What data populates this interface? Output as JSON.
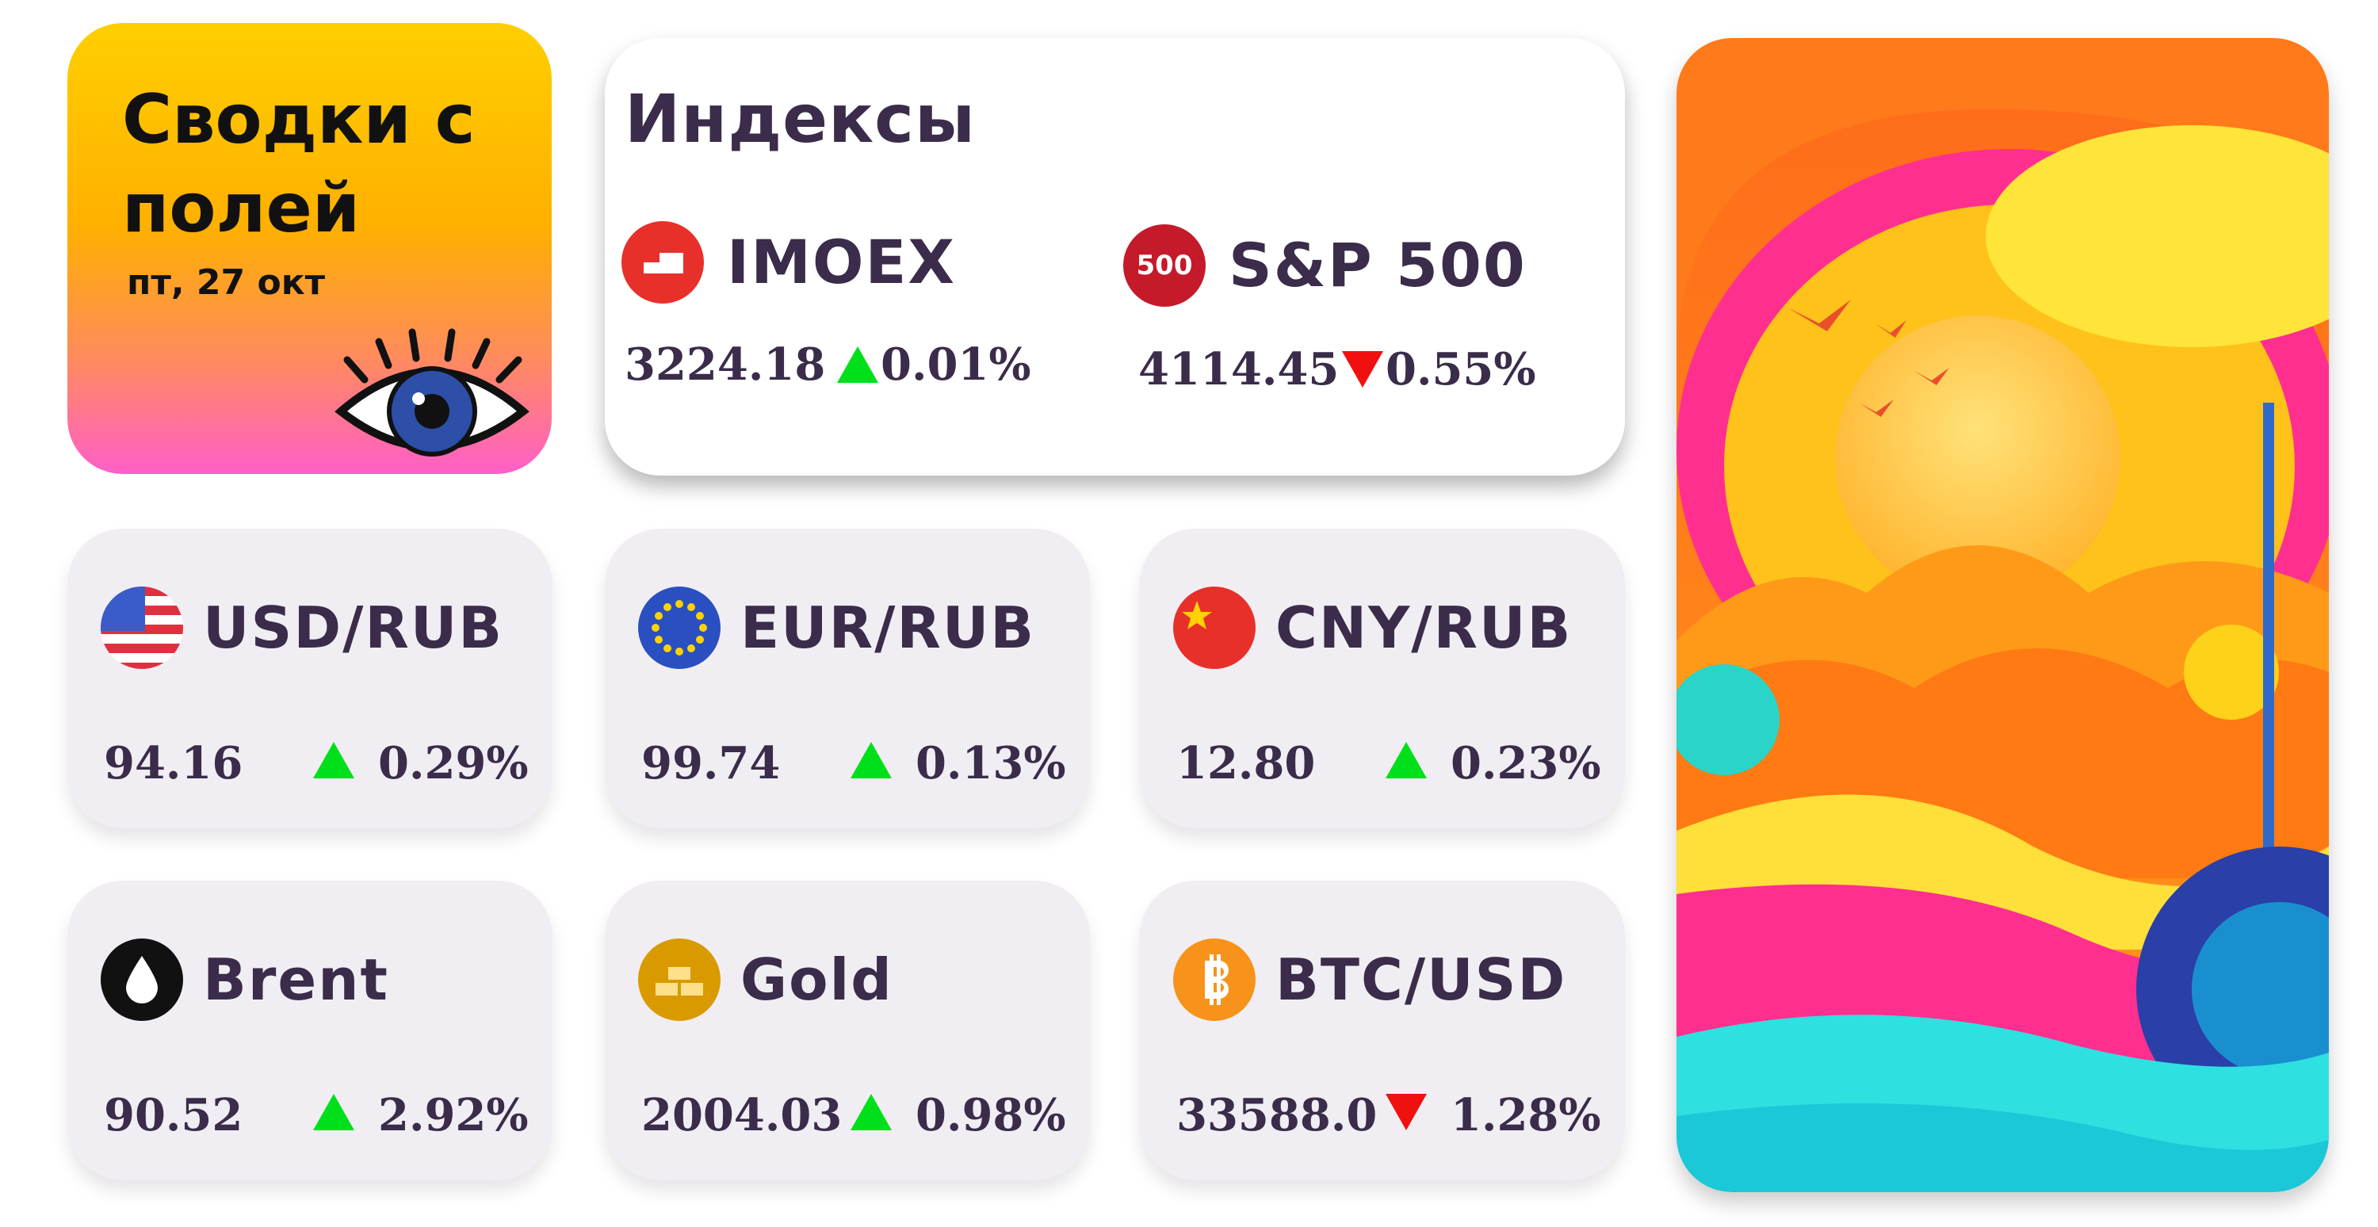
{
  "header": {
    "title_lines": [
      "Сводки с",
      "полей"
    ],
    "date": "пт, 27 окт"
  },
  "indices": {
    "title": "Индексы",
    "items": [
      {
        "name": "IMOEX",
        "value": "3224.18",
        "direction": "up",
        "change": "0.01%"
      },
      {
        "name": "S&P 500",
        "icon_label": "500",
        "value": "4114.45",
        "direction": "down",
        "change": "0.55%"
      }
    ]
  },
  "tiles": [
    {
      "name": "USD/RUB",
      "value": "94.16",
      "direction": "up",
      "change": "0.29%"
    },
    {
      "name": "EUR/RUB",
      "value": "99.74",
      "direction": "up",
      "change": "0.13%"
    },
    {
      "name": "CNY/RUB",
      "value": "12.80",
      "direction": "up",
      "change": "0.23%"
    },
    {
      "name": "Brent",
      "value": "90.52",
      "direction": "up",
      "change": "2.92%"
    },
    {
      "name": "Gold",
      "value": "2004.03",
      "direction": "up",
      "change": "0.98%"
    },
    {
      "name": "BTC/USD",
      "value": "33588.0",
      "direction": "down",
      "change": "1.28%"
    }
  ]
}
